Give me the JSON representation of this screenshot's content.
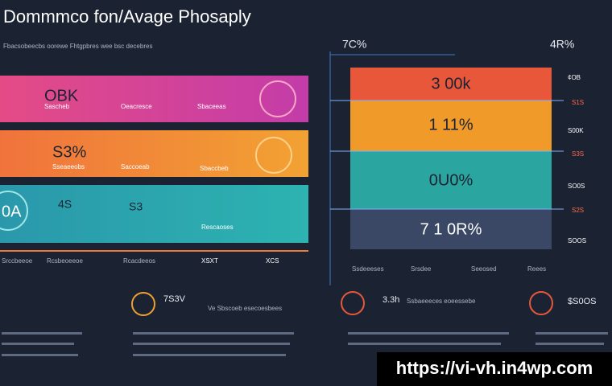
{
  "header": {
    "title": "Dommmco fon/Avage Phosaply",
    "subtitle": "Fbacsobeecbs oorewe Fhtgpbres wee bsc decebres"
  },
  "left_panels": [
    {
      "label": "OBK",
      "items": [
        "Oeacresce",
        "Sbaceeas",
        "Sascheb"
      ]
    },
    {
      "label": "S3%",
      "items": [
        "Saccoeab",
        "Sbaccbeb",
        "Sseaeeobs"
      ]
    },
    {
      "label": "0A",
      "items": [
        "4S",
        "S3",
        "Rescaoses"
      ]
    }
  ],
  "left_footer": [
    "Srccbeeoe",
    "Rcsbeoeeoe",
    "Rcacdeeos",
    "XSXT",
    "XCS"
  ],
  "right_top": [
    "7C%",
    "4R%"
  ],
  "stack": [
    {
      "label": "3 00k",
      "side": "¢OB"
    },
    {
      "label": "1 11%",
      "side": "S00K"
    },
    {
      "label": "0U0%",
      "side": "SO0S"
    },
    {
      "label": "7 1 0R%",
      "side": "SOOS"
    }
  ],
  "stack_side_red": [
    "S1S",
    "S3S",
    "S2S"
  ],
  "stack_footer": [
    "Ssdeeeses",
    "Srsdee",
    "Seeosed",
    "Reees"
  ],
  "bottom": {
    "left_value": "7S3V",
    "left_text": "Ve Sbscoeb esecoesbees",
    "mid_value": "3.3h",
    "mid_text": "Ssbaeeeces eoeessebe",
    "right_value": "$S0OS"
  },
  "watermark": "https://vi-vh.in4wp.com"
}
